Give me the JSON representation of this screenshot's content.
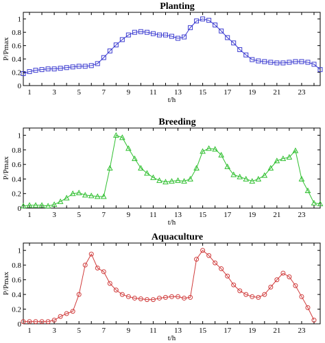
{
  "chart_data": [
    {
      "type": "line",
      "title": "Planting",
      "xlabel": "t/h",
      "ylabel": "P/Pmax",
      "xlim": [
        0.5,
        24.5
      ],
      "ylim": [
        0,
        1.1
      ],
      "xticks": [
        "1",
        "3",
        "5",
        "7",
        "9",
        "11",
        "13",
        "15",
        "17",
        "19",
        "21",
        "23"
      ],
      "yticks": [
        "0",
        "0.2",
        "0.4",
        "0.6",
        "0.8",
        "1"
      ],
      "marker": "square",
      "color": "#3b3bd0",
      "x": [
        0.5,
        1,
        1.5,
        2,
        2.5,
        3,
        3.5,
        4,
        4.5,
        5,
        5.5,
        6,
        6.5,
        7,
        7.5,
        8,
        8.5,
        9,
        9.5,
        10,
        10.5,
        11,
        11.5,
        12,
        12.5,
        13,
        13.5,
        14,
        14.5,
        15,
        15.5,
        16,
        16.5,
        17,
        17.5,
        18,
        18.5,
        19,
        19.5,
        20,
        20.5,
        21,
        21.5,
        22,
        22.5,
        23,
        23.5,
        24,
        24.5
      ],
      "values": [
        0.18,
        0.21,
        0.23,
        0.24,
        0.25,
        0.25,
        0.26,
        0.27,
        0.28,
        0.29,
        0.29,
        0.3,
        0.33,
        0.42,
        0.52,
        0.61,
        0.69,
        0.76,
        0.8,
        0.81,
        0.8,
        0.78,
        0.76,
        0.76,
        0.74,
        0.71,
        0.73,
        0.87,
        0.97,
        1.0,
        0.98,
        0.91,
        0.82,
        0.72,
        0.64,
        0.54,
        0.46,
        0.39,
        0.37,
        0.36,
        0.35,
        0.34,
        0.34,
        0.35,
        0.36,
        0.36,
        0.35,
        0.32,
        0.24
      ]
    },
    {
      "type": "line",
      "title": "Breeding",
      "xlabel": "t/h",
      "ylabel": "P/Pmax",
      "xlim": [
        0.5,
        24.5
      ],
      "ylim": [
        0,
        1.1
      ],
      "xticks": [
        "1",
        "3",
        "5",
        "7",
        "9",
        "11",
        "13",
        "15",
        "17",
        "19",
        "21",
        "23"
      ],
      "yticks": [
        "0",
        "0.2",
        "0.4",
        "0.6",
        "0.8",
        "1"
      ],
      "marker": "triangle",
      "color": "#2fbf2f",
      "x": [
        0.5,
        1,
        1.5,
        2,
        2.5,
        3,
        3.5,
        4,
        4.5,
        5,
        5.5,
        6,
        6.5,
        7,
        7.5,
        8,
        8.5,
        9,
        9.5,
        10,
        10.5,
        11,
        11.5,
        12,
        12.5,
        13,
        13.5,
        14,
        14.5,
        15,
        15.5,
        16,
        16.5,
        17,
        17.5,
        18,
        18.5,
        19,
        19.5,
        20,
        20.5,
        21,
        21.5,
        22,
        22.5,
        23,
        23.5,
        24,
        24.5
      ],
      "values": [
        0.03,
        0.04,
        0.04,
        0.04,
        0.03,
        0.05,
        0.09,
        0.14,
        0.2,
        0.21,
        0.18,
        0.17,
        0.16,
        0.16,
        0.55,
        1.0,
        0.97,
        0.82,
        0.68,
        0.55,
        0.48,
        0.42,
        0.38,
        0.36,
        0.37,
        0.38,
        0.37,
        0.4,
        0.55,
        0.78,
        0.82,
        0.81,
        0.73,
        0.57,
        0.46,
        0.43,
        0.4,
        0.37,
        0.4,
        0.45,
        0.55,
        0.65,
        0.68,
        0.7,
        0.79,
        0.4,
        0.24,
        0.07,
        0.06
      ]
    },
    {
      "type": "line",
      "title": "Aquaculture",
      "xlabel": "t/h",
      "ylabel": "P/Pmax",
      "xlim": [
        0.5,
        24.5
      ],
      "ylim": [
        0,
        1.1
      ],
      "xticks": [
        "1",
        "3",
        "5",
        "7",
        "9",
        "11",
        "13",
        "15",
        "17",
        "19",
        "21",
        "23"
      ],
      "yticks": [
        "0",
        "0.2",
        "0.4",
        "0.6",
        "0.8",
        "1"
      ],
      "marker": "circle",
      "color": "#d03b3b",
      "x": [
        0.5,
        1,
        1.5,
        2,
        2.5,
        3,
        3.5,
        4,
        4.5,
        5,
        5.5,
        6,
        6.5,
        7,
        7.5,
        8,
        8.5,
        9,
        9.5,
        10,
        10.5,
        11,
        11.5,
        12,
        12.5,
        13,
        13.5,
        14,
        14.5,
        15,
        15.5,
        16,
        16.5,
        17,
        17.5,
        18,
        18.5,
        19,
        19.5,
        20,
        20.5,
        21,
        21.5,
        22,
        22.5,
        23,
        23.5,
        24
      ],
      "values": [
        0.03,
        0.03,
        0.03,
        0.03,
        0.03,
        0.05,
        0.1,
        0.14,
        0.17,
        0.4,
        0.8,
        0.95,
        0.76,
        0.71,
        0.55,
        0.46,
        0.4,
        0.37,
        0.35,
        0.34,
        0.33,
        0.33,
        0.35,
        0.36,
        0.37,
        0.37,
        0.35,
        0.36,
        0.88,
        1.0,
        0.93,
        0.83,
        0.75,
        0.65,
        0.53,
        0.45,
        0.4,
        0.37,
        0.36,
        0.4,
        0.5,
        0.6,
        0.69,
        0.64,
        0.52,
        0.37,
        0.22,
        0.05
      ]
    }
  ]
}
